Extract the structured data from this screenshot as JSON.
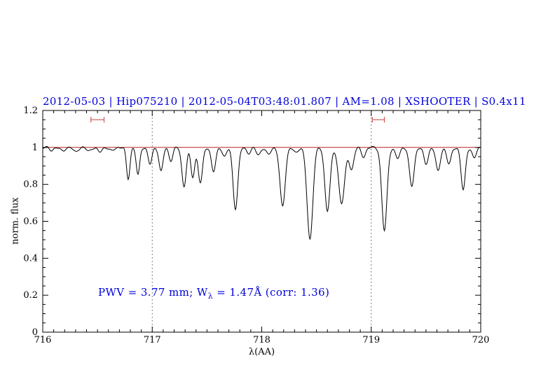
{
  "title": "2012-05-03 | Hip075210 | 2012-05-04T03:48:01.807 | AM=1.08 | XSHOOTER | S0.4x11",
  "annotation": {
    "prefix": "PWV = 3.77 mm; W",
    "sub": "λ",
    "suffix": " = 1.47Å (corr: 1.36)"
  },
  "colors": {
    "accent_blue": "#0000dd",
    "continuum_red": "#aa0000",
    "marker_red": "#cc5555",
    "spectrum_black": "#000000",
    "guide_gray": "#555555"
  },
  "chart_data": {
    "type": "line",
    "title": "2012-05-03 | Hip075210 | 2012-05-04T03:48:01.807 | AM=1.08 | XSHOOTER | S0.4x11",
    "xlabel": "λ(AA)",
    "ylabel": "norm. flux",
    "xlim": [
      716,
      720
    ],
    "ylim": [
      0,
      1.2
    ],
    "grid": false,
    "x_ticks": {
      "major": [
        716,
        717,
        718,
        719,
        720
      ],
      "labels": [
        "716",
        "717",
        "718",
        "719",
        "720"
      ],
      "minor_step": 0.1
    },
    "y_ticks": {
      "major": [
        0,
        0.2,
        0.4,
        0.6,
        0.8,
        1,
        1.2
      ],
      "labels": [
        "0",
        "0.2",
        "0.4",
        "0.6",
        "0.8",
        "1",
        "1.2"
      ],
      "minor_step": 0.05
    },
    "continuum": {
      "level": 1.0
    },
    "dotted_guides": [
      717,
      719
    ],
    "range_markers": [
      {
        "x1": 716.44,
        "x2": 716.56,
        "y": 1.15
      },
      {
        "x1": 719.01,
        "x2": 719.12,
        "y": 1.15
      }
    ],
    "annotation_text": "PWV = 3.77 mm; W_λ = 1.47Å (corr: 1.36)",
    "spectrum_model": {
      "description": "normalized telluric spectrum: flux(x) = 1 + noise - sum of gaussian absorption lines [center, depth, sigma]",
      "sample_step": 0.005,
      "noise": [
        [
          0.004,
          97.0,
          0.0
        ],
        [
          0.003,
          53.0,
          2.0
        ]
      ],
      "absorption_lines": [
        [
          716.08,
          0.015,
          0.02
        ],
        [
          716.18,
          0.02,
          0.02
        ],
        [
          716.3,
          0.025,
          0.02
        ],
        [
          716.42,
          0.02,
          0.02
        ],
        [
          716.52,
          0.025,
          0.02
        ],
        [
          716.63,
          0.02,
          0.02
        ],
        [
          716.78,
          0.17,
          0.016
        ],
        [
          716.87,
          0.15,
          0.016
        ],
        [
          716.98,
          0.09,
          0.018
        ],
        [
          717.08,
          0.13,
          0.018
        ],
        [
          717.17,
          0.07,
          0.018
        ],
        [
          717.29,
          0.21,
          0.02
        ],
        [
          717.37,
          0.16,
          0.018
        ],
        [
          717.44,
          0.19,
          0.02
        ],
        [
          717.56,
          0.13,
          0.02
        ],
        [
          717.66,
          0.05,
          0.018
        ],
        [
          717.76,
          0.33,
          0.022
        ],
        [
          717.88,
          0.03,
          0.02
        ],
        [
          717.97,
          0.04,
          0.02
        ],
        [
          718.06,
          0.04,
          0.02
        ],
        [
          718.19,
          0.32,
          0.024
        ],
        [
          718.31,
          0.03,
          0.02
        ],
        [
          718.44,
          0.5,
          0.026
        ],
        [
          718.6,
          0.34,
          0.024
        ],
        [
          718.73,
          0.3,
          0.028
        ],
        [
          718.82,
          0.12,
          0.02
        ],
        [
          718.93,
          0.05,
          0.02
        ],
        [
          719.12,
          0.45,
          0.024
        ],
        [
          719.24,
          0.06,
          0.02
        ],
        [
          719.37,
          0.21,
          0.022
        ],
        [
          719.5,
          0.09,
          0.02
        ],
        [
          719.61,
          0.13,
          0.02
        ],
        [
          719.71,
          0.09,
          0.02
        ],
        [
          719.84,
          0.23,
          0.02
        ],
        [
          719.94,
          0.06,
          0.018
        ]
      ]
    }
  }
}
